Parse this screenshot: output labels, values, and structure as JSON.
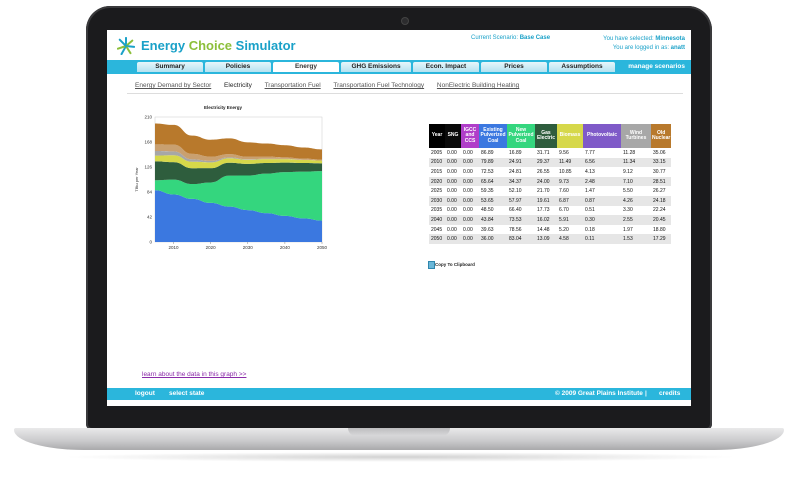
{
  "app": {
    "title_part1": "Energy ",
    "title_part2": "Choice",
    "title_part3": " Simulator",
    "scenario_label": "Current Scenario:",
    "scenario_value": "Base Case",
    "selected_label": "You have selected:",
    "selected_value": "Minnesota",
    "login_label": "You are logged in as:",
    "login_value": "anatt"
  },
  "tabs": [
    {
      "label": "Summary"
    },
    {
      "label": "Policies"
    },
    {
      "label": "Energy",
      "active": true
    },
    {
      "label": "GHG Emissions"
    },
    {
      "label": "Econ. Impact"
    },
    {
      "label": "Prices"
    },
    {
      "label": "Assumptions"
    }
  ],
  "manage_label": "manage scenarios",
  "subnav": [
    {
      "label": "Energy Demand by Sector"
    },
    {
      "label": "Electricity",
      "current": true
    },
    {
      "label": "Transportation Fuel"
    },
    {
      "label": "Transportation Fuel Technology"
    },
    {
      "label": "NonElectric Building Heating"
    }
  ],
  "chart_data": {
    "type": "area",
    "title": "Electricity Energy",
    "ylabel": "TBtu per Year",
    "xlabel": "",
    "x": [
      2005,
      2010,
      2015,
      2020,
      2025,
      2030,
      2035,
      2040,
      2045,
      2050
    ],
    "xticks": [
      "2010",
      "2020",
      "2030",
      "2040",
      "2050"
    ],
    "yticks": [
      "0",
      "42",
      "84",
      "126",
      "168",
      "210"
    ],
    "ylim": [
      0,
      210
    ],
    "stacked": true,
    "series": [
      {
        "color": "#3b78e0",
        "values": [
          86.89,
          79.89,
          72.53,
          65.64,
          59.35,
          53.65,
          48.5,
          43.84,
          39.63,
          36.0
        ]
      },
      {
        "color": "#34d67e",
        "values": [
          16.89,
          24.91,
          24.81,
          34.37,
          52.1,
          57.97,
          66.4,
          73.53,
          78.56,
          83.04
        ]
      },
      {
        "color": "#2e5d3d",
        "values": [
          31.71,
          29.37,
          26.55,
          24.0,
          21.7,
          19.61,
          17.73,
          16.02,
          14.48,
          13.09
        ]
      },
      {
        "color": "#d6d84a",
        "values": [
          9.56,
          11.49,
          10.85,
          9.73,
          7.6,
          6.87,
          6.7,
          5.91,
          5.2,
          4.58
        ]
      },
      {
        "color": "#a7a7a7",
        "values": [
          7.77,
          6.56,
          4.13,
          2.48,
          1.47,
          0.87,
          0.51,
          0.3,
          0.18,
          0.11
        ]
      },
      {
        "color": "#c9a070",
        "values": [
          11.28,
          11.34,
          9.12,
          7.1,
          5.5,
          4.26,
          3.3,
          2.55,
          1.97,
          1.53
        ]
      },
      {
        "color": "#b8792c",
        "values": [
          35.06,
          33.15,
          30.77,
          28.51,
          26.27,
          24.18,
          22.24,
          20.45,
          18.8,
          17.29
        ]
      }
    ]
  },
  "table": {
    "headers": [
      {
        "label": "Year",
        "color": "#000000"
      },
      {
        "label": "SNG",
        "color": "#0a0a0a"
      },
      {
        "label": "IGCC and CCS",
        "color": "#b03ec9"
      },
      {
        "label": "Existing Pulverized Coal",
        "color": "#3b78e0"
      },
      {
        "label": "New Pulverized Coal",
        "color": "#34d67e"
      },
      {
        "label": "Gas Electric",
        "color": "#2e5d3d"
      },
      {
        "label": "Biomass",
        "color": "#d6d84a"
      },
      {
        "label": "Photovoltaic",
        "color": "#7f5ac8"
      },
      {
        "label": "Wind Turbines",
        "color": "#a7a7a7"
      },
      {
        "label": "Old Nuclear",
        "color": "#b8792c"
      }
    ],
    "rows": [
      [
        "2005",
        "0.00",
        "0.00",
        "86.89",
        "16.89",
        "31.71",
        "9.56",
        "7.77",
        "11.28",
        "35.06"
      ],
      [
        "2010",
        "0.00",
        "0.00",
        "79.89",
        "24.91",
        "29.37",
        "11.49",
        "6.56",
        "11.34",
        "33.15"
      ],
      [
        "2015",
        "0.00",
        "0.00",
        "72.53",
        "24.81",
        "26.55",
        "10.85",
        "4.13",
        "9.12",
        "30.77"
      ],
      [
        "2020",
        "0.00",
        "0.00",
        "65.64",
        "34.37",
        "24.00",
        "9.73",
        "2.48",
        "7.10",
        "28.51"
      ],
      [
        "2025",
        "0.00",
        "0.00",
        "59.35",
        "52.10",
        "21.70",
        "7.60",
        "1.47",
        "5.50",
        "26.27"
      ],
      [
        "2030",
        "0.00",
        "0.00",
        "53.65",
        "57.97",
        "19.61",
        "6.87",
        "0.87",
        "4.26",
        "24.18"
      ],
      [
        "2035",
        "0.00",
        "0.00",
        "48.50",
        "66.40",
        "17.73",
        "6.70",
        "0.51",
        "3.30",
        "22.24"
      ],
      [
        "2040",
        "0.00",
        "0.00",
        "43.84",
        "73.53",
        "16.02",
        "5.91",
        "0.30",
        "2.55",
        "20.45"
      ],
      [
        "2045",
        "0.00",
        "0.00",
        "39.63",
        "78.56",
        "14.48",
        "5.20",
        "0.18",
        "1.97",
        "18.80"
      ],
      [
        "2050",
        "0.00",
        "0.00",
        "36.00",
        "83.04",
        "13.09",
        "4.58",
        "0.11",
        "1.53",
        "17.29"
      ]
    ],
    "copy_label": "Copy To Clipboard"
  },
  "learn_link": "learn about the data in this graph >>",
  "footer": {
    "logout": "logout",
    "select_state": "select state",
    "copyright": "© 2009 Great Plains Institute",
    "separator": "|",
    "credits": "credits"
  }
}
